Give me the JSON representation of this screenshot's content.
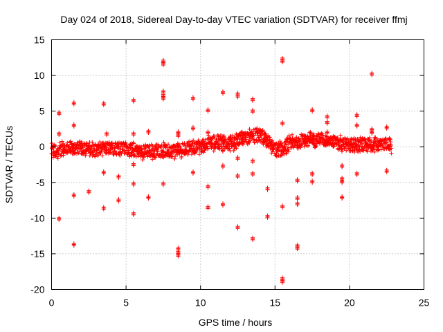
{
  "chart_data": {
    "type": "scatter",
    "title": "Day 024 of 2018, Sidereal Day-to-day VTEC variation (SDTVAR) for receiver ffmj",
    "xlabel": "GPS time / hours",
    "ylabel": "SDTVAR / TECUs",
    "xlim": [
      0,
      25
    ],
    "ylim": [
      -20,
      15
    ],
    "xticks": [
      0,
      5,
      10,
      15,
      20,
      25
    ],
    "yticks": [
      -20,
      -15,
      -10,
      -5,
      0,
      5,
      10,
      15
    ],
    "grid": true,
    "marker": "+",
    "color": "#ff0000",
    "band": [
      [
        0.0,
        -0.6
      ],
      [
        1.0,
        -0.3
      ],
      [
        2.0,
        -0.2
      ],
      [
        3.0,
        -0.4
      ],
      [
        4.0,
        -0.2
      ],
      [
        5.0,
        -0.3
      ],
      [
        6.0,
        -0.7
      ],
      [
        7.0,
        -0.6
      ],
      [
        8.0,
        -0.5
      ],
      [
        9.0,
        -0.3
      ],
      [
        10.0,
        0.0
      ],
      [
        11.0,
        0.7
      ],
      [
        12.0,
        0.6
      ],
      [
        12.5,
        0.9
      ],
      [
        13.0,
        1.3
      ],
      [
        13.5,
        1.4
      ],
      [
        14.0,
        1.6
      ],
      [
        14.5,
        0.8
      ],
      [
        15.0,
        -0.5
      ],
      [
        15.5,
        -0.2
      ],
      [
        16.0,
        0.5
      ],
      [
        17.0,
        1.0
      ],
      [
        18.0,
        1.1
      ],
      [
        19.0,
        0.6
      ],
      [
        20.0,
        0.2
      ],
      [
        21.0,
        0.3
      ],
      [
        22.0,
        0.4
      ],
      [
        22.8,
        0.3
      ]
    ],
    "outliers": [
      [
        0.5,
        4.7
      ],
      [
        0.5,
        1.8
      ],
      [
        0.5,
        -10.1
      ],
      [
        1.5,
        6.1
      ],
      [
        1.5,
        3.0
      ],
      [
        1.5,
        -6.8
      ],
      [
        1.5,
        -13.7
      ],
      [
        2.5,
        -6.3
      ],
      [
        3.5,
        6.0
      ],
      [
        3.5,
        -3.6
      ],
      [
        3.5,
        -8.6
      ],
      [
        3.7,
        1.8
      ],
      [
        4.5,
        -4.2
      ],
      [
        4.5,
        -7.5
      ],
      [
        5.5,
        6.5
      ],
      [
        5.5,
        1.8
      ],
      [
        5.5,
        -2.5
      ],
      [
        5.5,
        -5.2
      ],
      [
        5.5,
        -9.4
      ],
      [
        6.5,
        2.1
      ],
      [
        6.5,
        -7.1
      ],
      [
        7.5,
        12.0
      ],
      [
        7.5,
        11.6
      ],
      [
        7.5,
        7.7
      ],
      [
        7.5,
        7.2
      ],
      [
        7.5,
        6.8
      ],
      [
        7.5,
        -5.2
      ],
      [
        8.5,
        2.0
      ],
      [
        8.5,
        1.6
      ],
      [
        8.5,
        -14.3
      ],
      [
        8.5,
        -14.8
      ],
      [
        8.5,
        -15.2
      ],
      [
        9.5,
        6.8
      ],
      [
        9.5,
        2.6
      ],
      [
        9.5,
        -3.6
      ],
      [
        10.5,
        5.1
      ],
      [
        10.5,
        2.0
      ],
      [
        10.5,
        -5.6
      ],
      [
        10.5,
        -8.5
      ],
      [
        11.5,
        7.6
      ],
      [
        11.5,
        -0.5
      ],
      [
        11.5,
        -2.7
      ],
      [
        11.5,
        -8.1
      ],
      [
        12.5,
        7.4
      ],
      [
        12.5,
        7.1
      ],
      [
        12.5,
        -1.6
      ],
      [
        12.5,
        -4.1
      ],
      [
        12.5,
        -11.3
      ],
      [
        13.5,
        6.6
      ],
      [
        13.5,
        5.0
      ],
      [
        13.5,
        -2.0
      ],
      [
        13.5,
        -3.8
      ],
      [
        13.5,
        -12.9
      ],
      [
        14.5,
        -5.9
      ],
      [
        14.5,
        -9.8
      ],
      [
        15.5,
        12.3
      ],
      [
        15.5,
        12.0
      ],
      [
        15.5,
        3.3
      ],
      [
        15.5,
        -8.4
      ],
      [
        15.5,
        -18.5
      ],
      [
        15.5,
        -18.9
      ],
      [
        16.5,
        -4.7
      ],
      [
        16.5,
        -7.2
      ],
      [
        16.5,
        -8.0
      ],
      [
        16.5,
        -13.9
      ],
      [
        16.5,
        -14.2
      ],
      [
        17.5,
        5.1
      ],
      [
        17.5,
        -3.8
      ],
      [
        17.5,
        -4.9
      ],
      [
        18.5,
        4.2
      ],
      [
        18.5,
        3.4
      ],
      [
        18.5,
        2.0
      ],
      [
        19.5,
        -2.7
      ],
      [
        19.5,
        -4.5
      ],
      [
        19.5,
        -4.9
      ],
      [
        19.5,
        -7.1
      ],
      [
        20.5,
        4.4
      ],
      [
        20.5,
        3.0
      ],
      [
        20.5,
        -3.8
      ],
      [
        21.5,
        10.2
      ],
      [
        21.5,
        2.4
      ],
      [
        21.5,
        2.0
      ],
      [
        22.5,
        2.7
      ],
      [
        22.5,
        -3.4
      ]
    ]
  }
}
